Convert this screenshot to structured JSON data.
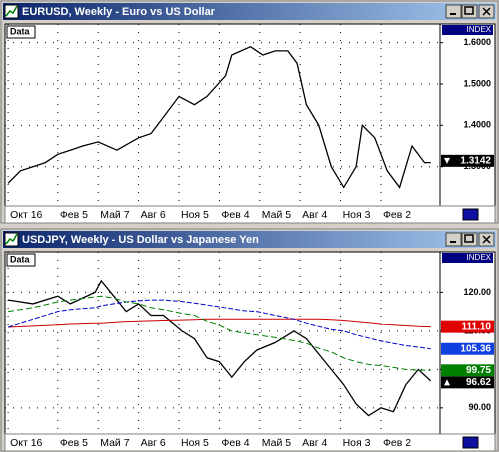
{
  "chart_data": [
    {
      "type": "line",
      "title": "EURUSD, Weekly - Euro vs US Dollar",
      "data_label": "Data",
      "index_label": "INDEX",
      "xlim": [
        -1,
        139
      ],
      "ylim": [
        1.205,
        1.645
      ],
      "xticks": [
        {
          "value": 0,
          "label": "Окт 16"
        },
        {
          "value": 16,
          "label": "Фев 5"
        },
        {
          "value": 29,
          "label": "Май 7"
        },
        {
          "value": 42,
          "label": "Авг 6"
        },
        {
          "value": 55,
          "label": "Ноя 5"
        },
        {
          "value": 68,
          "label": "Фев 4"
        },
        {
          "value": 81,
          "label": "Май 5"
        },
        {
          "value": 94,
          "label": "Авг 4"
        },
        {
          "value": 107,
          "label": "Ноя 3"
        },
        {
          "value": 120,
          "label": "Фев 2"
        }
      ],
      "yticks": [
        {
          "value": 1.6,
          "label": "1.6000"
        },
        {
          "value": 1.5,
          "label": "1.5000"
        },
        {
          "value": 1.4,
          "label": "1.4000"
        },
        {
          "value": 1.3,
          "label": "1.3000"
        }
      ],
      "grid": true,
      "x": [
        0,
        4,
        8,
        12,
        16,
        20,
        24,
        29,
        35,
        42,
        46,
        50,
        55,
        60,
        64,
        70,
        72,
        78,
        82,
        86,
        90,
        93,
        96,
        100,
        104,
        108,
        112,
        114,
        118,
        122,
        126,
        130,
        134,
        136
      ],
      "series": [
        {
          "color": "#000000",
          "values": [
            1.26,
            1.29,
            1.3,
            1.31,
            1.33,
            1.34,
            1.35,
            1.36,
            1.34,
            1.37,
            1.38,
            1.42,
            1.47,
            1.45,
            1.47,
            1.52,
            1.57,
            1.59,
            1.57,
            1.58,
            1.58,
            1.55,
            1.45,
            1.4,
            1.3,
            1.25,
            1.3,
            1.4,
            1.37,
            1.29,
            1.25,
            1.35,
            1.31,
            1.31
          ]
        }
      ],
      "price_labels": [],
      "last": {
        "value": 1.3142,
        "label": "1.3142",
        "direction": "down"
      }
    },
    {
      "type": "line",
      "title": "USDJPY, Weekly - US Dollar vs Japanese Yen",
      "data_label": "Data",
      "index_label": "INDEX",
      "xlim": [
        -1,
        139
      ],
      "ylim": [
        83.2,
        130.5
      ],
      "xticks": [
        {
          "value": 0,
          "label": "Окт 16"
        },
        {
          "value": 16,
          "label": "Фев 5"
        },
        {
          "value": 29,
          "label": "Май 7"
        },
        {
          "value": 42,
          "label": "Авг 6"
        },
        {
          "value": 55,
          "label": "Ноя 5"
        },
        {
          "value": 68,
          "label": "Фев 4"
        },
        {
          "value": 81,
          "label": "Май 5"
        },
        {
          "value": 94,
          "label": "Авг 4"
        },
        {
          "value": 107,
          "label": "Ноя 3"
        },
        {
          "value": 120,
          "label": "Фев 2"
        }
      ],
      "yticks": [
        {
          "value": 120,
          "label": "120.00"
        },
        {
          "value": 110,
          "label": "110.00"
        },
        {
          "value": 100,
          "label": "100.00"
        },
        {
          "value": 90,
          "label": "90.00"
        }
      ],
      "grid": true,
      "x": [
        0,
        8,
        16,
        20,
        28,
        30,
        34,
        38,
        42,
        46,
        50,
        56,
        60,
        64,
        68,
        72,
        76,
        80,
        86,
        92,
        96,
        100,
        104,
        108,
        112,
        116,
        120,
        124,
        128,
        132,
        136
      ],
      "series": [
        {
          "color": "#000000",
          "values": [
            118,
            117,
            119,
            117,
            120,
            123,
            119,
            115,
            117,
            114,
            114,
            110,
            108,
            103,
            102,
            98,
            102,
            105,
            107,
            110,
            108,
            104,
            100,
            96,
            91,
            88,
            90,
            89,
            96,
            100,
            97
          ]
        },
        {
          "color": "#cc0000",
          "values": [
            111,
            111.3,
            111.6,
            111.8,
            112,
            112,
            112.2,
            112.4,
            112.5,
            112.6,
            112.7,
            112.8,
            112.9,
            113,
            113,
            113,
            113,
            113,
            113,
            113,
            113,
            113,
            112.9,
            112.7,
            112.4,
            112.1,
            111.8,
            111.6,
            111.4,
            111.2,
            111.1
          ]
        },
        {
          "color": "#0000cc",
          "values": [
            111,
            113,
            115,
            115.5,
            116,
            116.5,
            117,
            117.5,
            117.8,
            118,
            118,
            117.6,
            117.2,
            116.7,
            116.2,
            115.7,
            115.2,
            115,
            114,
            113,
            112,
            111.2,
            110.4,
            110,
            109,
            108.2,
            107.4,
            106.8,
            106.2,
            105.8,
            105.36
          ]
        },
        {
          "color": "#008000",
          "values": [
            115,
            116,
            117.5,
            118,
            118.8,
            119,
            118.5,
            117.5,
            117,
            116,
            115.5,
            114.5,
            114,
            112.5,
            111.5,
            110,
            109.5,
            109,
            108.3,
            107.5,
            106.8,
            105.5,
            104.5,
            103,
            102,
            101.3,
            101,
            100.5,
            100,
            99.8,
            99.75
          ]
        }
      ],
      "price_labels": [
        {
          "value": 111.1,
          "label": "111.10",
          "color": "#e00000"
        },
        {
          "value": 105.36,
          "label": "105.36",
          "color": "#1040e0"
        },
        {
          "value": 99.75,
          "label": "99.75",
          "color": "#008000"
        }
      ],
      "last": {
        "value": 96.62,
        "label": "96.62",
        "direction": "up"
      }
    }
  ]
}
